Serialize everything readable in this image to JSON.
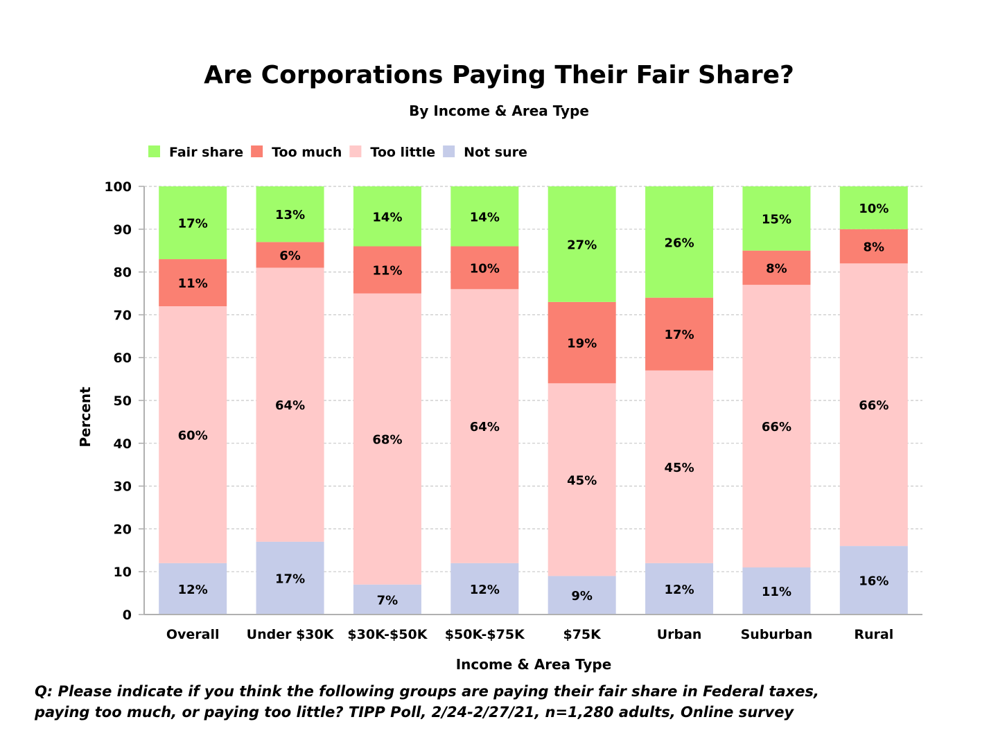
{
  "chart_data": {
    "type": "bar",
    "stacked": true,
    "title": "Are Corporations Paying Their Fair Share?",
    "subtitle": "By Income & Area Type",
    "xlabel": "Income & Area Type",
    "ylabel": "Percent",
    "ylim": [
      0,
      100
    ],
    "yticks": [
      0,
      10,
      20,
      30,
      40,
      50,
      60,
      70,
      80,
      90,
      100
    ],
    "grid": true,
    "legend_position": "top-left",
    "categories": [
      "Overall",
      "Under $30K",
      "$30K-$50K",
      "$50K-$75K",
      "$75K",
      "Urban",
      "Suburban",
      "Rural"
    ],
    "series": [
      {
        "name": "Not sure",
        "color": "#c5cce9",
        "values": [
          12,
          17,
          7,
          12,
          9,
          12,
          11,
          16
        ]
      },
      {
        "name": "Too little",
        "color": "#ffc9c9",
        "values": [
          60,
          64,
          68,
          64,
          45,
          45,
          66,
          66
        ]
      },
      {
        "name": "Too much",
        "color": "#fa8072",
        "values": [
          11,
          6,
          11,
          10,
          19,
          17,
          8,
          8
        ]
      },
      {
        "name": "Fair share",
        "color": "#a0fc6a",
        "values": [
          17,
          13,
          14,
          14,
          27,
          26,
          15,
          10
        ]
      }
    ],
    "legend_order": [
      "Fair share",
      "Too much",
      "Too little",
      "Not sure"
    ]
  },
  "footnote": {
    "line1": "Q:  Please indicate if you think the following groups are paying their fair share in Federal taxes,",
    "line2": "paying too much, or paying too little?  TIPP Poll, 2/24-2/27/21, n=1,280 adults, Online survey"
  }
}
